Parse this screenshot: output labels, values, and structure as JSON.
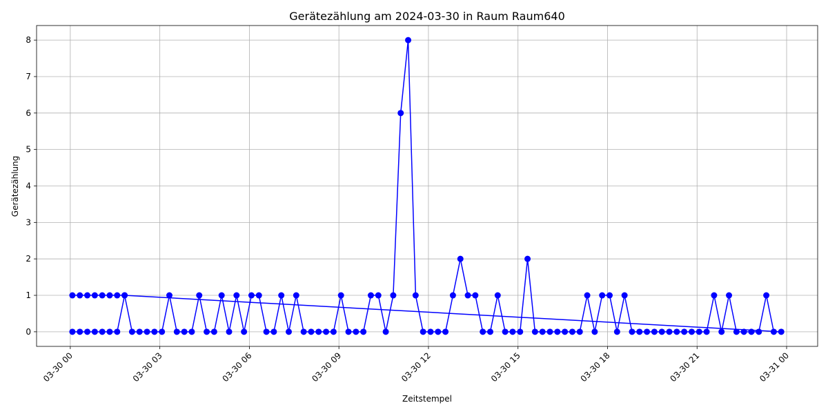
{
  "chart_data": {
    "type": "line",
    "title": "Gerätezählung am 2024-03-30 in Raum Raum640",
    "xlabel": "Zeitstempel",
    "ylabel": "Gerätezählung",
    "color": "#0000ff",
    "grid": true,
    "x": [
      0.07,
      0.32,
      0.57,
      0.82,
      1.07,
      1.32,
      1.57,
      1.82,
      23.82,
      23.57,
      23.32,
      23.07,
      22.82,
      22.57,
      22.32,
      22.07,
      21.82,
      21.57,
      21.32,
      21.07,
      20.82,
      20.57,
      20.32,
      20.07,
      19.82,
      19.57,
      19.32,
      19.07,
      18.82,
      18.57,
      18.32,
      18.07,
      17.82,
      17.57,
      17.32,
      17.07,
      16.82,
      16.57,
      16.32,
      16.07,
      15.82,
      15.57,
      15.32,
      15.07,
      14.82,
      14.57,
      14.32,
      14.07,
      13.82,
      13.57,
      13.32,
      13.07,
      12.82,
      12.57,
      12.32,
      12.07,
      11.82,
      11.57,
      11.32,
      11.07,
      10.82,
      10.57,
      10.32,
      10.07,
      9.82,
      9.57,
      9.32,
      9.07,
      8.82,
      8.57,
      8.32,
      8.07,
      7.82,
      7.57,
      7.32,
      7.07,
      6.82,
      6.57,
      6.32,
      6.07,
      5.82,
      5.57,
      5.32,
      5.07,
      4.82,
      4.57,
      4.32,
      4.07,
      3.82,
      3.57,
      3.32,
      3.07,
      2.82,
      2.57,
      2.32,
      2.07,
      1.82,
      1.57,
      1.32,
      1.07,
      0.82,
      0.57,
      0.32,
      0.07
    ],
    "values": [
      1,
      1,
      1,
      1,
      1,
      1,
      1,
      1,
      0,
      0,
      1,
      0,
      0,
      0,
      0,
      1,
      0,
      1,
      0,
      0,
      0,
      0,
      0,
      0,
      0,
      0,
      0,
      0,
      0,
      1,
      0,
      1,
      1,
      0,
      1,
      0,
      0,
      0,
      0,
      0,
      0,
      0,
      2,
      0,
      0,
      0,
      1,
      0,
      0,
      1,
      1,
      2,
      1,
      0,
      0,
      0,
      0,
      1,
      8,
      6,
      1,
      0,
      1,
      1,
      0,
      0,
      0,
      1,
      0,
      0,
      0,
      0,
      0,
      1,
      0,
      1,
      0,
      0,
      1,
      1,
      0,
      1,
      0,
      1,
      0,
      0,
      1,
      0,
      0,
      0,
      1,
      0,
      0,
      0,
      0,
      0,
      1,
      0,
      0,
      0,
      0,
      0,
      0,
      0
    ],
    "xlim": [
      -1.13,
      25.04
    ],
    "ylim": [
      -0.4,
      8.4
    ],
    "xticks": [
      {
        "value": 0,
        "label": "03-30 00"
      },
      {
        "value": 3,
        "label": "03-30 03"
      },
      {
        "value": 6,
        "label": "03-30 06"
      },
      {
        "value": 9,
        "label": "03-30 09"
      },
      {
        "value": 12,
        "label": "03-30 12"
      },
      {
        "value": 15,
        "label": "03-30 15"
      },
      {
        "value": 18,
        "label": "03-30 18"
      },
      {
        "value": 21,
        "label": "03-30 21"
      },
      {
        "value": 24,
        "label": "03-31 00"
      }
    ],
    "yticks": [
      0,
      1,
      2,
      3,
      4,
      5,
      6,
      7,
      8
    ]
  }
}
